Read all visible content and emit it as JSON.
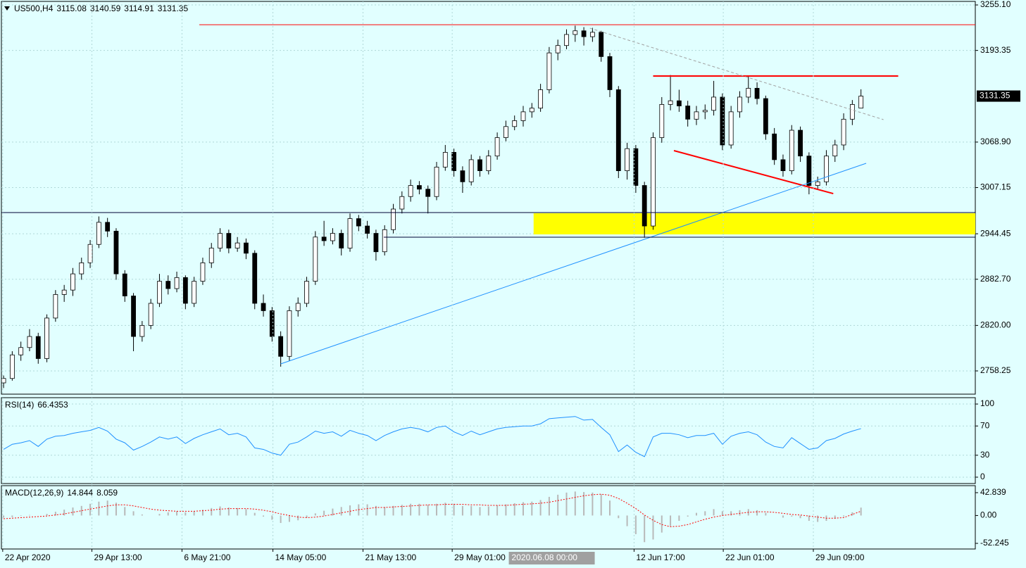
{
  "chart_data": [
    {
      "type": "candlestick",
      "title": "US500,H4",
      "xlim": [
        -0.25,
        112.2
      ],
      "ylim": [
        2726.7,
        3259.9
      ],
      "yticks": [
        {
          "value": 3255.1,
          "label": "3255.10"
        },
        3193.35,
        {
          "value": 3068.9,
          "label": "3068.90"
        },
        3007.15,
        2944.45,
        {
          "value": 2882.7,
          "label": "2882.70"
        },
        {
          "value": 2820,
          "label": "2820.00"
        },
        2758.25
      ],
      "xticks": [
        {
          "value": -0.1,
          "label": "22 Apr 2020"
        },
        {
          "value": 10.2,
          "label": "29 Apr 13:00"
        },
        {
          "value": 20.6,
          "label": "6 May 21:00"
        },
        {
          "value": 31.1,
          "label": "14 May 05:00"
        },
        {
          "value": 41.5,
          "label": "21 May 13:00"
        },
        {
          "value": 51.8,
          "label": "29 May 01:00"
        },
        {
          "value": 72.8,
          "label": "12 Jun 17:00"
        },
        {
          "value": 83.1,
          "label": "22 Jun 01:00"
        },
        {
          "value": 93.5,
          "label": "29 Jun 09:00"
        }
      ],
      "cursor_label": {
        "value": 58.5,
        "label": "2020.06.08 00:00"
      },
      "grid": true,
      "up_color": "#ffffff",
      "down_color": "#000000",
      "candles": [
        [
          2742,
          2752,
          2735,
          2748
        ],
        [
          2748,
          2785,
          2745,
          2780
        ],
        [
          2780,
          2798,
          2772,
          2790
        ],
        [
          2790,
          2815,
          2785,
          2805
        ],
        [
          2805,
          2810,
          2768,
          2775
        ],
        [
          2775,
          2835,
          2770,
          2830
        ],
        [
          2830,
          2868,
          2825,
          2862
        ],
        [
          2862,
          2875,
          2852,
          2868
        ],
        [
          2868,
          2898,
          2860,
          2890
        ],
        [
          2890,
          2912,
          2882,
          2905
        ],
        [
          2905,
          2936,
          2898,
          2930
        ],
        [
          2930,
          2968,
          2925,
          2960
        ],
        [
          2960,
          2966,
          2940,
          2948
        ],
        [
          2948,
          2952,
          2882,
          2890
        ],
        [
          2890,
          2895,
          2852,
          2860
        ],
        [
          2860,
          2864,
          2785,
          2805
        ],
        [
          2805,
          2826,
          2798,
          2820
        ],
        [
          2820,
          2856,
          2815,
          2850
        ],
        [
          2850,
          2890,
          2845,
          2880
        ],
        [
          2880,
          2888,
          2862,
          2870
        ],
        [
          2870,
          2893,
          2865,
          2885
        ],
        [
          2885,
          2888,
          2842,
          2850
        ],
        [
          2850,
          2886,
          2845,
          2880
        ],
        [
          2880,
          2912,
          2875,
          2905
        ],
        [
          2905,
          2932,
          2898,
          2925
        ],
        [
          2925,
          2952,
          2920,
          2945
        ],
        [
          2945,
          2950,
          2918,
          2925
        ],
        [
          2925,
          2940,
          2920,
          2932
        ],
        [
          2932,
          2938,
          2910,
          2918
        ],
        [
          2918,
          2922,
          2842,
          2850
        ],
        [
          2850,
          2862,
          2832,
          2840
        ],
        [
          2840,
          2845,
          2798,
          2805
        ],
        [
          2805,
          2812,
          2764,
          2778
        ],
        [
          2778,
          2846,
          2772,
          2840
        ],
        [
          2840,
          2858,
          2832,
          2850
        ],
        [
          2850,
          2886,
          2845,
          2880
        ],
        [
          2880,
          2948,
          2875,
          2940
        ],
        [
          2940,
          2962,
          2928,
          2935
        ],
        [
          2935,
          2952,
          2930,
          2945
        ],
        [
          2945,
          2950,
          2915,
          2925
        ],
        [
          2925,
          2972,
          2920,
          2965
        ],
        [
          2965,
          2970,
          2948,
          2955
        ],
        [
          2955,
          2962,
          2938,
          2945
        ],
        [
          2945,
          2950,
          2908,
          2920
        ],
        [
          2920,
          2956,
          2915,
          2950
        ],
        [
          2950,
          2985,
          2945,
          2978
        ],
        [
          2978,
          3002,
          2972,
          2995
        ],
        [
          2995,
          3018,
          2988,
          3010
        ],
        [
          3010,
          3016,
          2998,
          3005
        ],
        [
          3005,
          3010,
          2972,
          2995
        ],
        [
          2995,
          3042,
          2990,
          3035
        ],
        [
          3035,
          3065,
          3030,
          3055
        ],
        [
          3055,
          3060,
          3022,
          3030
        ],
        [
          3030,
          3036,
          3000,
          3015
        ],
        [
          3015,
          3052,
          3010,
          3045
        ],
        [
          3045,
          3050,
          3022,
          3030
        ],
        [
          3030,
          3058,
          3025,
          3050
        ],
        [
          3050,
          3082,
          3045,
          3075
        ],
        [
          3075,
          3098,
          3070,
          3090
        ],
        [
          3090,
          3105,
          3085,
          3098
        ],
        [
          3098,
          3118,
          3090,
          3110
        ],
        [
          3110,
          3122,
          3102,
          3115
        ],
        [
          3115,
          3148,
          3110,
          3140
        ],
        [
          3140,
          3198,
          3135,
          3190
        ],
        [
          3190,
          3208,
          3180,
          3200
        ],
        [
          3200,
          3222,
          3195,
          3215
        ],
        [
          3215,
          3227,
          3205,
          3220
        ],
        [
          3220,
          3225,
          3200,
          3212
        ],
        [
          3212,
          3224,
          3205,
          3218
        ],
        [
          3218,
          3220,
          3178,
          3185
        ],
        [
          3185,
          3190,
          3130,
          3140
        ],
        [
          3140,
          3145,
          3020,
          3030
        ],
        [
          3030,
          3068,
          3018,
          3060
        ],
        [
          3060,
          3065,
          3000,
          3010
        ],
        [
          3010,
          3015,
          2939,
          2955
        ],
        [
          2955,
          3082,
          2950,
          3075
        ],
        [
          3075,
          3130,
          3068,
          3120
        ],
        [
          3120,
          3160,
          3112,
          3125
        ],
        [
          3125,
          3140,
          3110,
          3118
        ],
        [
          3118,
          3125,
          3090,
          3100
        ],
        [
          3100,
          3118,
          3092,
          3110
        ],
        [
          3110,
          3120,
          3100,
          3112
        ],
        [
          3112,
          3152,
          3105,
          3130
        ],
        [
          3130,
          3135,
          3058,
          3065
        ],
        [
          3065,
          3118,
          3060,
          3110
        ],
        [
          3110,
          3138,
          3102,
          3130
        ],
        [
          3130,
          3158,
          3122,
          3142
        ],
        [
          3142,
          3150,
          3120,
          3128
        ],
        [
          3128,
          3132,
          3072,
          3080
        ],
        [
          3080,
          3088,
          3038,
          3045
        ],
        [
          3045,
          3052,
          3022,
          3030
        ],
        [
          3030,
          3092,
          3025,
          3085
        ],
        [
          3085,
          3090,
          3042,
          3050
        ],
        [
          3050,
          3055,
          2998,
          3010
        ],
        [
          3010,
          3022,
          3004,
          3015
        ],
        [
          3015,
          3058,
          3010,
          3050
        ],
        [
          3050,
          3072,
          3042,
          3065
        ],
        [
          3065,
          3108,
          3058,
          3100
        ],
        [
          3100,
          3126,
          3092,
          3120
        ],
        [
          3115.08,
          3140.59,
          3114.91,
          3131.35
        ]
      ],
      "lines": [
        {
          "x": [
            22.6,
            112.2
          ],
          "y": [
            3228.3,
            3228.3
          ],
          "color": "#ff0000",
          "width": 1,
          "dash": false
        },
        {
          "x": [
            75,
            103.3
          ],
          "y": [
            3158.6,
            3158.6
          ],
          "color": "#ff0000",
          "width": 2,
          "dash": false
        },
        {
          "x": [
            77.4,
            95.8
          ],
          "y": [
            3057.3,
            2999
          ],
          "color": "#ff0000",
          "width": 2,
          "dash": false
        },
        {
          "x": [
            32,
            99.6
          ],
          "y": [
            2767.8,
            3040.1
          ],
          "color": "#1e90ff",
          "width": 1,
          "dash": false
        },
        {
          "x": [
            67.7,
            101.6
          ],
          "y": [
            3223.6,
            3099.4
          ],
          "color": "#a0a0a0",
          "width": 1,
          "dash": true
        },
        {
          "x": [
            -0.25,
            112.2
          ],
          "y": [
            2973.2,
            2973.2
          ],
          "color": "#000033",
          "width": 1,
          "dash": false
        },
        {
          "x": [
            43.9,
            112.2
          ],
          "y": [
            2939.8,
            2939.8
          ],
          "color": "#000033",
          "width": 1,
          "dash": false
        }
      ],
      "zones": [
        {
          "x": [
            61.2,
            112.2
          ],
          "y": [
            2972.3,
            2943.6
          ],
          "color": "#ffff00"
        }
      ]
    },
    {
      "type": "line",
      "title": "RSI(14)",
      "xlim": [
        -0.25,
        112.2
      ],
      "ylim": [
        -8.7,
        108.7
      ],
      "yticks": [
        100,
        70,
        30,
        0
      ],
      "grid": true,
      "series": [
        {
          "color": "#1e90ff",
          "values": [
            38,
            45,
            47,
            50,
            42,
            52,
            56,
            57,
            60,
            62,
            64,
            68,
            63,
            52,
            47,
            37,
            42,
            48,
            55,
            52,
            55,
            46,
            53,
            58,
            62,
            66,
            58,
            60,
            55,
            40,
            38,
            33,
            30,
            45,
            48,
            55,
            63,
            60,
            62,
            56,
            64,
            60,
            57,
            50,
            57,
            62,
            66,
            68,
            66,
            62,
            68,
            70,
            62,
            57,
            63,
            58,
            62,
            66,
            68,
            69,
            70,
            70,
            73,
            80,
            81,
            82,
            83,
            78,
            79,
            68,
            58,
            35,
            44,
            34,
            28,
            55,
            60,
            60,
            58,
            54,
            57,
            57,
            60,
            45,
            56,
            60,
            62,
            58,
            48,
            42,
            40,
            54,
            46,
            38,
            40,
            50,
            53,
            59,
            63,
            66.4353
          ]
        }
      ]
    },
    {
      "type": "macd",
      "title": "MACD(12,26,9)",
      "xlim": [
        -0.25,
        112.2
      ],
      "ylim": [
        -62.8,
        56
      ],
      "yticks": [
        42.839,
        {
          "value": 0,
          "label": "0.00"
        },
        -52.245
      ],
      "grid": false,
      "series": [
        {
          "kind": "bar",
          "color": "#b8b8b8",
          "values": [
            -4,
            -3,
            -1,
            1,
            0,
            3,
            7,
            11,
            15,
            18,
            22,
            26,
            28,
            24,
            16,
            8,
            2,
            0,
            3,
            6,
            8,
            6,
            8,
            11,
            14,
            17,
            15,
            14,
            12,
            5,
            -2,
            -8,
            -14,
            -12,
            -9,
            -4,
            4,
            9,
            13,
            16,
            19,
            21,
            21,
            18,
            16,
            18,
            20,
            22,
            22,
            20,
            22,
            24,
            22,
            18,
            18,
            16,
            17,
            19,
            21,
            23,
            25,
            26,
            29,
            35,
            39,
            43,
            45,
            44,
            43,
            40,
            28,
            -5,
            -20,
            -35,
            -50,
            -45,
            -32,
            -20,
            -10,
            -2,
            5,
            8,
            12,
            8,
            8,
            10,
            12,
            10,
            5,
            0,
            -4,
            -2,
            -5,
            -10,
            -12,
            -10,
            -6,
            -2,
            6,
            14.844
          ]
        },
        {
          "kind": "line",
          "color": "#ff0000",
          "values": [
            -6,
            -5,
            -4,
            -3,
            -2,
            -1,
            1,
            3,
            6,
            9,
            12,
            15,
            18,
            20,
            20,
            18,
            15,
            12,
            10,
            9,
            8,
            8,
            8,
            9,
            10,
            12,
            13,
            13,
            13,
            12,
            10,
            7,
            3,
            0,
            -3,
            -4,
            -3,
            -1,
            2,
            5,
            8,
            11,
            13,
            15,
            15,
            16,
            17,
            18,
            19,
            20,
            20,
            21,
            21,
            21,
            20,
            20,
            19,
            19,
            19,
            20,
            21,
            22,
            23,
            25,
            28,
            31,
            34,
            37,
            39,
            40,
            38,
            32,
            23,
            13,
            1,
            -9,
            -17,
            -21,
            -20,
            -17,
            -12,
            -7,
            -3,
            0,
            2,
            4,
            6,
            7,
            7,
            6,
            4,
            2,
            1,
            -1,
            -3,
            -5,
            -5,
            -4,
            2,
            8.059
          ]
        }
      ]
    }
  ]
}
